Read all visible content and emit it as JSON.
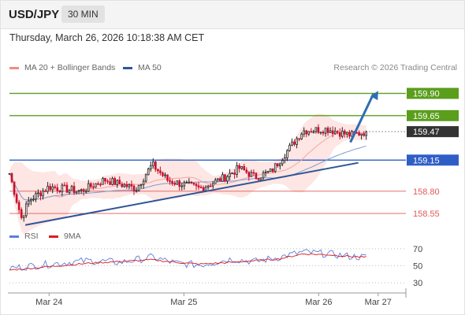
{
  "header": {
    "symbol": "USD/JPY",
    "timeframe": "30 MIN"
  },
  "datetime": "Thursday, March 26, 2026 10:18:38 AM CET",
  "legend": {
    "ma20": {
      "label": "MA 20 + Bollinger Bands",
      "color": "#f28b82"
    },
    "ma50": {
      "label": "MA 50",
      "color": "#2f5597"
    }
  },
  "credit": "Research © 2026 Trading Central",
  "rsi_legend": {
    "rsi": {
      "label": "RSI",
      "color": "#5b7fde"
    },
    "ma9": {
      "label": "9MA",
      "color": "#e01b1b"
    }
  },
  "colors": {
    "up": "#222222",
    "down": "#c8102e",
    "resistance": "#5a9e1c",
    "pivot": "#2f5ec6",
    "support": "#e05a5a",
    "trend": "#2f5597",
    "last": "#333333"
  },
  "chart_data": [
    {
      "type": "candlestick",
      "x_ticks": [
        "Mar 24",
        "Mar 25",
        "Mar 26",
        "Mar 27"
      ],
      "y_range": [
        158.4,
        160.1
      ],
      "levels": [
        {
          "value": 159.9,
          "label": "159.90",
          "kind": "resistance"
        },
        {
          "value": 159.65,
          "label": "159.65",
          "kind": "resistance"
        },
        {
          "value": 159.47,
          "label": "159.47",
          "kind": "last"
        },
        {
          "value": 159.15,
          "label": "159.15",
          "kind": "pivot"
        },
        {
          "value": 158.8,
          "label": "158.80",
          "kind": "support"
        },
        {
          "value": 158.55,
          "label": "158.55",
          "kind": "support"
        }
      ],
      "trendlines": [
        {
          "from": [
            0.04,
            158.42
          ],
          "to": [
            0.88,
            159.12
          ]
        },
        {
          "from": [
            0.86,
            159.35
          ],
          "to": [
            0.93,
            159.93
          ]
        }
      ],
      "price_path": [
        [
          0.0,
          159.0
        ],
        [
          0.03,
          158.5
        ],
        [
          0.05,
          158.7
        ],
        [
          0.1,
          158.85
        ],
        [
          0.18,
          158.8
        ],
        [
          0.24,
          158.93
        ],
        [
          0.32,
          158.83
        ],
        [
          0.36,
          159.1
        ],
        [
          0.4,
          158.92
        ],
        [
          0.48,
          158.83
        ],
        [
          0.54,
          158.95
        ],
        [
          0.58,
          159.06
        ],
        [
          0.62,
          158.96
        ],
        [
          0.66,
          159.02
        ],
        [
          0.7,
          159.25
        ],
        [
          0.74,
          159.48
        ],
        [
          0.8,
          159.5
        ],
        [
          0.86,
          159.43
        ],
        [
          0.9,
          159.47
        ]
      ]
    },
    {
      "type": "line",
      "name": "RSI",
      "y_ticks": [
        70,
        50,
        30
      ],
      "y_range": [
        20,
        80
      ],
      "rsi_path": [
        [
          0.0,
          47
        ],
        [
          0.1,
          52
        ],
        [
          0.2,
          56
        ],
        [
          0.28,
          54
        ],
        [
          0.36,
          60
        ],
        [
          0.42,
          53
        ],
        [
          0.48,
          51
        ],
        [
          0.56,
          58
        ],
        [
          0.62,
          55
        ],
        [
          0.68,
          60
        ],
        [
          0.74,
          66
        ],
        [
          0.8,
          64
        ],
        [
          0.86,
          61
        ],
        [
          0.9,
          60
        ]
      ],
      "ma9_path": [
        [
          0.0,
          45
        ],
        [
          0.1,
          49
        ],
        [
          0.2,
          53
        ],
        [
          0.28,
          55
        ],
        [
          0.36,
          57
        ],
        [
          0.42,
          54
        ],
        [
          0.48,
          52
        ],
        [
          0.56,
          54
        ],
        [
          0.62,
          56
        ],
        [
          0.68,
          58
        ],
        [
          0.74,
          64
        ],
        [
          0.8,
          63
        ],
        [
          0.86,
          61
        ],
        [
          0.9,
          60
        ]
      ]
    }
  ]
}
